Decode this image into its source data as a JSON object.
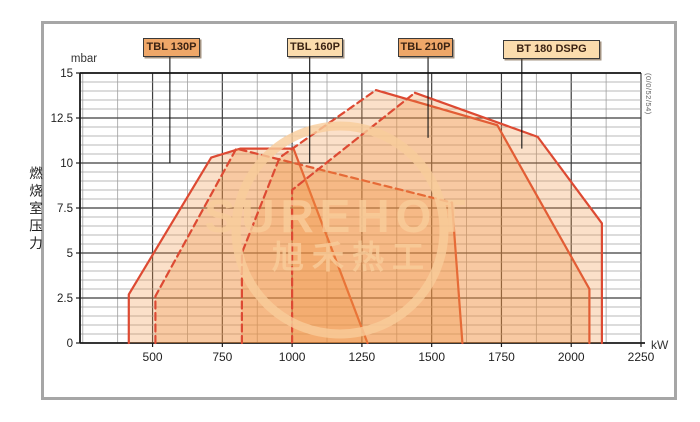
{
  "axes": {
    "y_unit": "mbar",
    "x_unit": "kW",
    "y_axis_title_cn": "燃烧室压力",
    "y_tick_labels": [
      "15",
      "12.5",
      "10",
      "7.5",
      "5",
      "2.5",
      "0"
    ],
    "y_tick_values": [
      15,
      12.5,
      10,
      7.5,
      5,
      2.5,
      0
    ],
    "x_tick_labels": [
      "500",
      "750",
      "1000",
      "1250",
      "1500",
      "1750",
      "2000",
      "2250"
    ],
    "x_tick_values": [
      500,
      750,
      1000,
      1250,
      1500,
      1750,
      2000,
      2250
    ]
  },
  "watermark": {
    "line1": "SUREHOT",
    "line2": "旭禾热工"
  },
  "side_code": "(0/0/52/54)",
  "colors": {
    "accent_red": "#dd4a33",
    "fill_orange": "#ef8f3e",
    "grid_major": "#3f3f3f",
    "grid_minor": "#a0a0a0",
    "axis_black": "#1a1a1a",
    "label_box_dark": "#efa768",
    "label_box_light": "#fbdcad",
    "frame_gray": "#a6a6a6",
    "watermark_orange": "#f9cd9b",
    "pointer_black": "#111111"
  },
  "chart_data": {
    "type": "area",
    "title": "",
    "xlabel": "kW",
    "ylabel": "mbar (燃烧室压力 / combustion chamber pressure)",
    "x_range": [
      240,
      2250
    ],
    "y_range": [
      0,
      15
    ],
    "x_major_step": 250,
    "x_minor_step": 125,
    "y_major_step": 2.5,
    "y_minor_step": 0.5,
    "grid": "on",
    "series": [
      {
        "name": "TBL 130P",
        "line_style": "solid",
        "dashed_until": 0,
        "box_style": "dark",
        "points": [
          [
            415,
            0
          ],
          [
            415,
            2.7
          ],
          [
            710,
            10.3
          ],
          [
            815,
            10.8
          ],
          [
            1005,
            10.8
          ],
          [
            1270,
            0
          ]
        ],
        "pointer_kw": 562,
        "pointer_mbar": 10.0
      },
      {
        "name": "TBL 160P",
        "line_style": "dashed",
        "dashed_until": 3,
        "box_style": "light",
        "points": [
          [
            510,
            0
          ],
          [
            510,
            2.6
          ],
          [
            800,
            10.8
          ],
          [
            1573,
            7.8
          ],
          [
            1610,
            0
          ]
        ],
        "pointer_kw": 1063,
        "pointer_mbar": 10.0
      },
      {
        "name": "TBL 210P",
        "line_style": "solid-with-dashed-left",
        "dashed_until": 3,
        "box_style": "dark",
        "points": [
          [
            820,
            0
          ],
          [
            820,
            5
          ],
          [
            955,
            10.3
          ],
          [
            1300,
            14.05
          ],
          [
            1735,
            12.1
          ],
          [
            2065,
            3
          ],
          [
            2065,
            0
          ]
        ],
        "pointer_kw": 1487,
        "pointer_mbar": 11.4
      },
      {
        "name": "BT 180 DSPG",
        "line_style": "solid-with-dashed-left",
        "dashed_until": 2,
        "box_style": "light",
        "points": [
          [
            1000,
            0
          ],
          [
            1000,
            8.5
          ],
          [
            1440,
            13.9
          ],
          [
            1880,
            11.45
          ],
          [
            2110,
            6.65
          ],
          [
            2110,
            0
          ]
        ],
        "pointer_kw": 1823,
        "pointer_mbar": 10.8
      }
    ]
  }
}
